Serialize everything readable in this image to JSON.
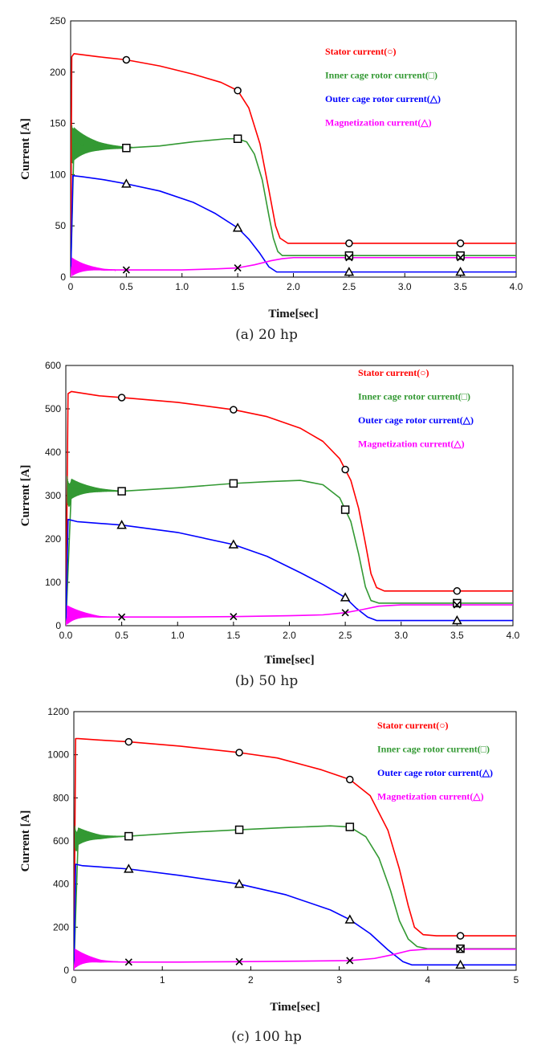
{
  "panels": [
    {
      "caption": "(a) 20 hp",
      "chart_data": {
        "type": "line",
        "xlabel": "Time[sec]",
        "ylabel": "Current [A]",
        "xlim": [
          0,
          4
        ],
        "ylim": [
          0,
          250
        ],
        "xticks": [
          "0",
          "0.5",
          "1.0",
          "1.5",
          "2.0",
          "2.5",
          "3.0",
          "3.5",
          "4.0"
        ],
        "xtick_values": [
          0,
          0.5,
          1,
          1.5,
          2,
          2.5,
          3,
          3.5,
          4
        ],
        "yticks": [
          "0",
          "50",
          "100",
          "150",
          "200",
          "250"
        ],
        "ytick_values": [
          0,
          50,
          100,
          150,
          200,
          250
        ],
        "grid": false,
        "legend_position": "top-right",
        "marker_x": [
          0.5,
          1.5,
          2.5,
          3.5
        ],
        "series": [
          {
            "name": "Stator current(○)",
            "color": "#ff0000",
            "marker": "circle",
            "x": [
              0,
              0.01,
              0.03,
              0.25,
              0.5,
              0.8,
              1.1,
              1.35,
              1.5,
              1.6,
              1.7,
              1.78,
              1.84,
              1.88,
              1.95,
              2.0,
              2.5,
              3.0,
              3.5,
              4.0
            ],
            "y": [
              0,
              215,
              218,
              215,
              212,
              206,
              198,
              190,
              182,
              165,
              130,
              85,
              50,
              38,
              33,
              33,
              33,
              33,
              33,
              33
            ]
          },
          {
            "name": "Inner cage rotor current(□)",
            "color": "#339933",
            "marker": "square",
            "x": [
              0,
              0.03,
              0.25,
              0.5,
              0.8,
              1.1,
              1.4,
              1.5,
              1.58,
              1.65,
              1.72,
              1.78,
              1.82,
              1.86,
              1.9,
              1.95,
              2.0,
              2.5,
              3.0,
              3.5,
              4.0
            ],
            "y": [
              0,
              130,
              127,
              126,
              128,
              132,
              135,
              135,
              132,
              120,
              95,
              60,
              38,
              25,
              21,
              21,
              21,
              21,
              21,
              21,
              21
            ],
            "oscillation": {
              "center": 130,
              "amp": 18,
              "t_end": 0.55
            }
          },
          {
            "name": "Outer cage rotor current(△)",
            "color": "#0000ff",
            "marker": "triangle",
            "x": [
              0,
              0.02,
              0.1,
              0.3,
              0.5,
              0.8,
              1.1,
              1.3,
              1.5,
              1.6,
              1.7,
              1.78,
              1.85,
              1.9,
              2.0,
              2.5,
              3.0,
              3.5,
              4.0
            ],
            "y": [
              0,
              99,
              98,
              95,
              91,
              84,
              73,
              62,
              48,
              37,
              23,
              10,
              5,
              5,
              5,
              5,
              5,
              5,
              5
            ]
          },
          {
            "name": "Magnetization current(△)",
            "color": "#ff00ff",
            "marker": "x",
            "x": [
              0,
              0.01,
              0.3,
              0.5,
              1.0,
              1.3,
              1.5,
              1.65,
              1.8,
              1.9,
              2.0,
              2.5,
              3.0,
              3.5,
              4.0
            ],
            "y": [
              0,
              10,
              7,
              7,
              7,
              8,
              9,
              12,
              16,
              18,
              19,
              19,
              19,
              19,
              19
            ],
            "oscillation": {
              "center": 10,
              "amp": 9,
              "t_end": 0.4
            }
          }
        ]
      }
    },
    {
      "caption": "(b) 50 hp",
      "chart_data": {
        "type": "line",
        "xlabel": "Time[sec]",
        "ylabel": "Current [A]",
        "xlim": [
          0,
          4
        ],
        "ylim": [
          0,
          600
        ],
        "xticks": [
          "0.0",
          "0.5",
          "1.0",
          "1.5",
          "2.0",
          "2.5",
          "3.0",
          "3.5",
          "4.0"
        ],
        "xtick_values": [
          0,
          0.5,
          1,
          1.5,
          2,
          2.5,
          3,
          3.5,
          4
        ],
        "yticks": [
          "0",
          "100",
          "200",
          "300",
          "400",
          "500",
          "600"
        ],
        "ytick_values": [
          0,
          100,
          200,
          300,
          400,
          500,
          600
        ],
        "grid": false,
        "legend_position": "top-right",
        "marker_x": [
          0.5,
          1.5,
          2.5,
          3.5
        ],
        "series": [
          {
            "name": "Stator current(○)",
            "color": "#ff0000",
            "marker": "circle",
            "x": [
              0,
              0.02,
              0.05,
              0.3,
              0.5,
              1.0,
              1.5,
              1.8,
              2.1,
              2.3,
              2.45,
              2.55,
              2.62,
              2.68,
              2.73,
              2.78,
              2.85,
              3.0,
              3.5,
              4.0
            ],
            "y": [
              0,
              535,
              540,
              530,
              526,
              515,
              498,
              482,
              455,
              425,
              385,
              335,
              270,
              190,
              120,
              88,
              80,
              80,
              80,
              80
            ]
          },
          {
            "name": "Inner cage rotor current(□)",
            "color": "#339933",
            "marker": "square",
            "x": [
              0,
              0.05,
              0.3,
              0.5,
              1.0,
              1.5,
              1.8,
              2.1,
              2.3,
              2.45,
              2.55,
              2.62,
              2.68,
              2.73,
              2.8,
              3.0,
              3.5,
              4.0
            ],
            "y": [
              0,
              318,
              312,
              310,
              318,
              328,
              332,
              335,
              325,
              295,
              240,
              165,
              90,
              58,
              52,
              52,
              52,
              52
            ],
            "oscillation": {
              "center": 315,
              "amp": 30,
              "t_end": 0.5
            }
          },
          {
            "name": "Outer cage rotor current(△)",
            "color": "#0000ff",
            "marker": "triangle",
            "x": [
              0,
              0.02,
              0.1,
              0.5,
              1.0,
              1.5,
              1.8,
              2.1,
              2.3,
              2.5,
              2.6,
              2.7,
              2.78,
              2.85,
              3.0,
              3.5,
              4.0
            ],
            "y": [
              0,
              245,
              240,
              232,
              215,
              187,
              160,
              122,
              95,
              65,
              40,
              20,
              12,
              12,
              12,
              12,
              12
            ]
          },
          {
            "name": "Magnetization current(△)",
            "color": "#ff00ff",
            "marker": "x",
            "x": [
              0,
              0.02,
              0.3,
              0.5,
              1.0,
              1.5,
              2.0,
              2.3,
              2.5,
              2.65,
              2.8,
              3.0,
              3.5,
              4.0
            ],
            "y": [
              0,
              30,
              20,
              20,
              20,
              21,
              23,
              25,
              30,
              37,
              45,
              48,
              48,
              48
            ],
            "oscillation": {
              "center": 25,
              "amp": 22,
              "t_end": 0.4
            }
          }
        ]
      }
    },
    {
      "caption": "(c) 100 hp",
      "chart_data": {
        "type": "line",
        "xlabel": "Time[sec]",
        "ylabel": "Current [A]",
        "xlim": [
          0,
          5
        ],
        "ylim": [
          0,
          1200
        ],
        "xticks": [
          "0",
          "1",
          "2",
          "3",
          "4",
          "5"
        ],
        "xtick_values": [
          0,
          1,
          2,
          3,
          4,
          5
        ],
        "yticks": [
          "0",
          "200",
          "400",
          "600",
          "800",
          "1000",
          "1200"
        ],
        "ytick_values": [
          0,
          200,
          400,
          600,
          800,
          1000,
          1200
        ],
        "grid": false,
        "legend_position": "top-right",
        "marker_x": [
          0.62,
          1.87,
          3.12,
          4.37
        ],
        "series": [
          {
            "name": "Stator current(○)",
            "color": "#ff0000",
            "marker": "circle",
            "x": [
              0,
              0.02,
              0.05,
              0.3,
              0.62,
              1.2,
              1.87,
              2.3,
              2.8,
              3.12,
              3.35,
              3.55,
              3.68,
              3.78,
              3.85,
              3.95,
              4.1,
              4.37,
              5.0
            ],
            "y": [
              0,
              1075,
              1075,
              1068,
              1060,
              1040,
              1010,
              985,
              930,
              885,
              810,
              650,
              470,
              300,
              200,
              165,
              160,
              160,
              160
            ]
          },
          {
            "name": "Inner cage rotor current(□)",
            "color": "#339933",
            "marker": "square",
            "x": [
              0,
              0.05,
              0.3,
              0.62,
              1.2,
              1.87,
              2.4,
              2.9,
              3.12,
              3.3,
              3.45,
              3.58,
              3.68,
              3.78,
              3.88,
              4.0,
              4.37,
              5.0
            ],
            "y": [
              0,
              630,
              618,
              622,
              638,
              652,
              662,
              670,
              665,
              620,
              520,
              370,
              230,
              145,
              110,
              100,
              100,
              100
            ],
            "oscillation": {
              "center": 620,
              "amp": 50,
              "t_end": 0.6
            }
          },
          {
            "name": "Outer cage rotor current(△)",
            "color": "#0000ff",
            "marker": "triangle",
            "x": [
              0,
              0.02,
              0.1,
              0.62,
              1.2,
              1.87,
              2.4,
              2.9,
              3.12,
              3.35,
              3.55,
              3.72,
              3.82,
              3.9,
              4.37,
              5.0
            ],
            "y": [
              0,
              492,
              485,
              470,
              440,
              400,
              350,
              280,
              235,
              170,
              95,
              40,
              25,
              25,
              25,
              25
            ]
          },
          {
            "name": "Magnetization current(△)",
            "color": "#ff00ff",
            "marker": "x",
            "x": [
              0,
              0.02,
              0.3,
              0.62,
              1.2,
              1.87,
              2.5,
              3.12,
              3.4,
              3.6,
              3.8,
              4.0,
              4.37,
              5.0
            ],
            "y": [
              0,
              60,
              40,
              38,
              38,
              40,
              42,
              45,
              55,
              72,
              92,
              98,
              98,
              98
            ],
            "oscillation": {
              "center": 55,
              "amp": 45,
              "t_end": 0.5
            }
          }
        ]
      }
    }
  ]
}
